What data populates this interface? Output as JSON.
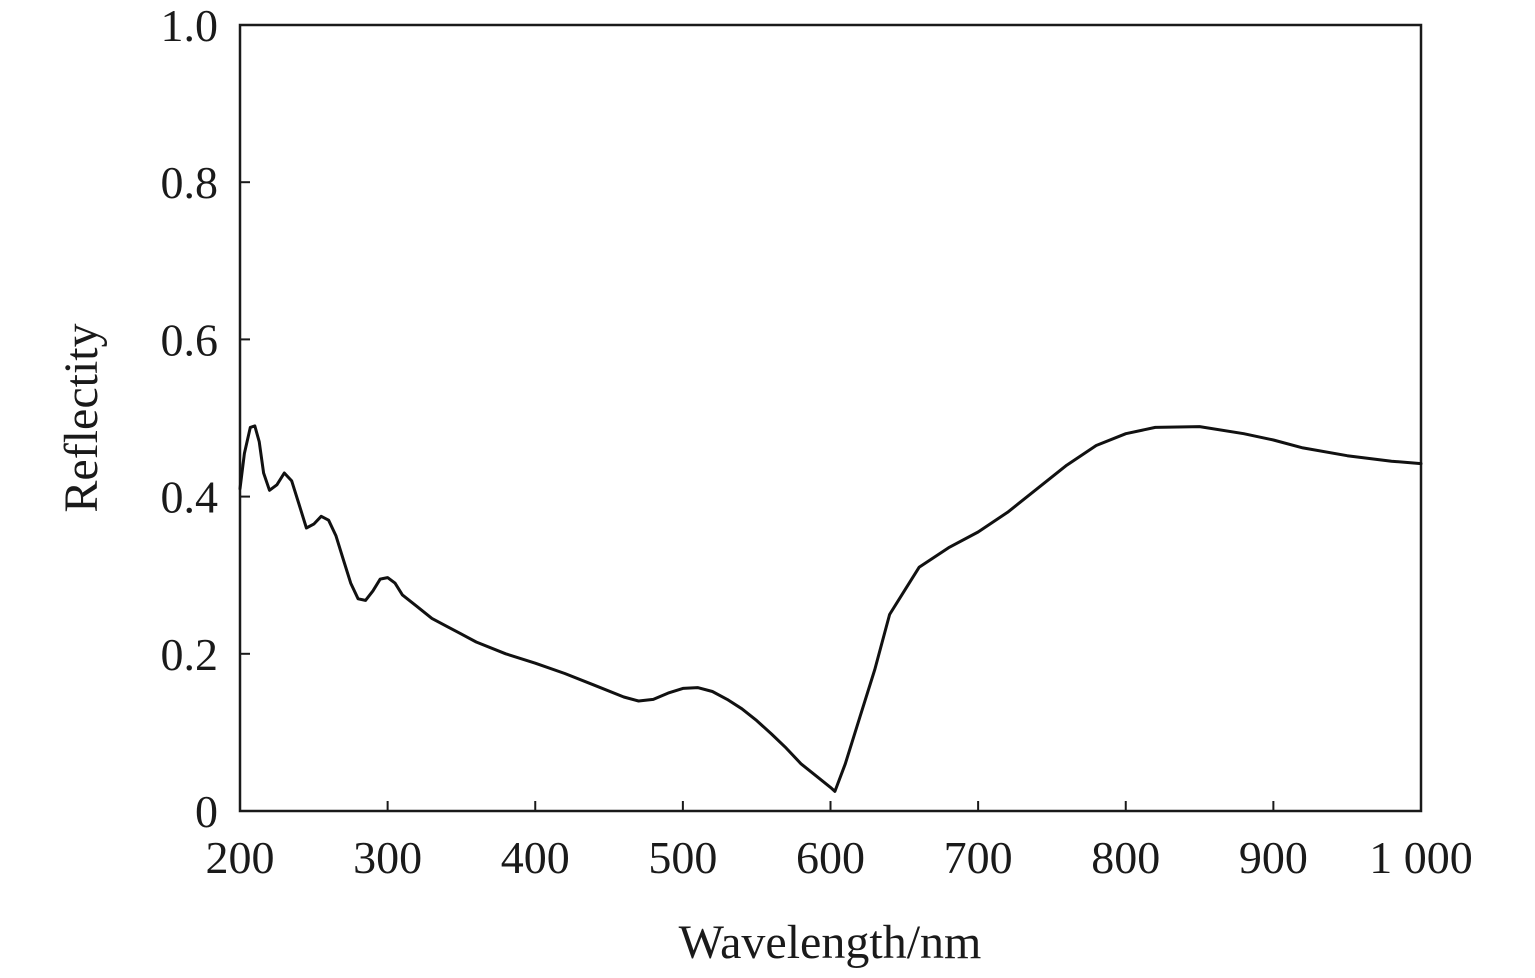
{
  "chart_data": {
    "type": "line",
    "title": "",
    "xlabel": "Wavelength/nm",
    "ylabel": "Reflectity",
    "xlim": [
      200,
      1000
    ],
    "ylim": [
      0,
      1.0
    ],
    "grid": false,
    "legend": "none",
    "x_ticks": [
      200,
      300,
      400,
      500,
      600,
      700,
      800,
      900,
      1000
    ],
    "x_tick_labels": [
      "200",
      "300",
      "400",
      "500",
      "600",
      "700",
      "800",
      "900",
      "1 000"
    ],
    "y_ticks": [
      0,
      0.2,
      0.4,
      0.6,
      0.8,
      1.0
    ],
    "y_tick_labels": [
      "0",
      "0.2",
      "0.4",
      "0.6",
      "0.8",
      "1.0"
    ],
    "line_color": "#111111",
    "series": [
      {
        "x": [
          200,
          203,
          207,
          210,
          213,
          216,
          220,
          225,
          230,
          235,
          240,
          245,
          250,
          255,
          260,
          265,
          270,
          275,
          280,
          285,
          290,
          295,
          300,
          305,
          310,
          320,
          330,
          340,
          350,
          360,
          380,
          400,
          420,
          440,
          460,
          470,
          480,
          490,
          500,
          510,
          520,
          530,
          540,
          550,
          560,
          570,
          580,
          590,
          600,
          603,
          610,
          620,
          630,
          640,
          650,
          660,
          680,
          700,
          720,
          740,
          760,
          780,
          800,
          820,
          850,
          880,
          900,
          920,
          950,
          980,
          1000
        ],
        "y": [
          0.41,
          0.455,
          0.488,
          0.49,
          0.47,
          0.43,
          0.408,
          0.415,
          0.43,
          0.42,
          0.39,
          0.36,
          0.365,
          0.375,
          0.37,
          0.35,
          0.32,
          0.29,
          0.27,
          0.268,
          0.28,
          0.295,
          0.297,
          0.29,
          0.275,
          0.26,
          0.245,
          0.235,
          0.225,
          0.215,
          0.2,
          0.188,
          0.175,
          0.16,
          0.145,
          0.14,
          0.142,
          0.15,
          0.156,
          0.157,
          0.152,
          0.142,
          0.13,
          0.115,
          0.098,
          0.08,
          0.06,
          0.045,
          0.03,
          0.025,
          0.06,
          0.12,
          0.18,
          0.25,
          0.28,
          0.31,
          0.335,
          0.355,
          0.38,
          0.41,
          0.44,
          0.465,
          0.48,
          0.488,
          0.489,
          0.48,
          0.472,
          0.462,
          0.452,
          0.445,
          0.442
        ]
      }
    ]
  }
}
